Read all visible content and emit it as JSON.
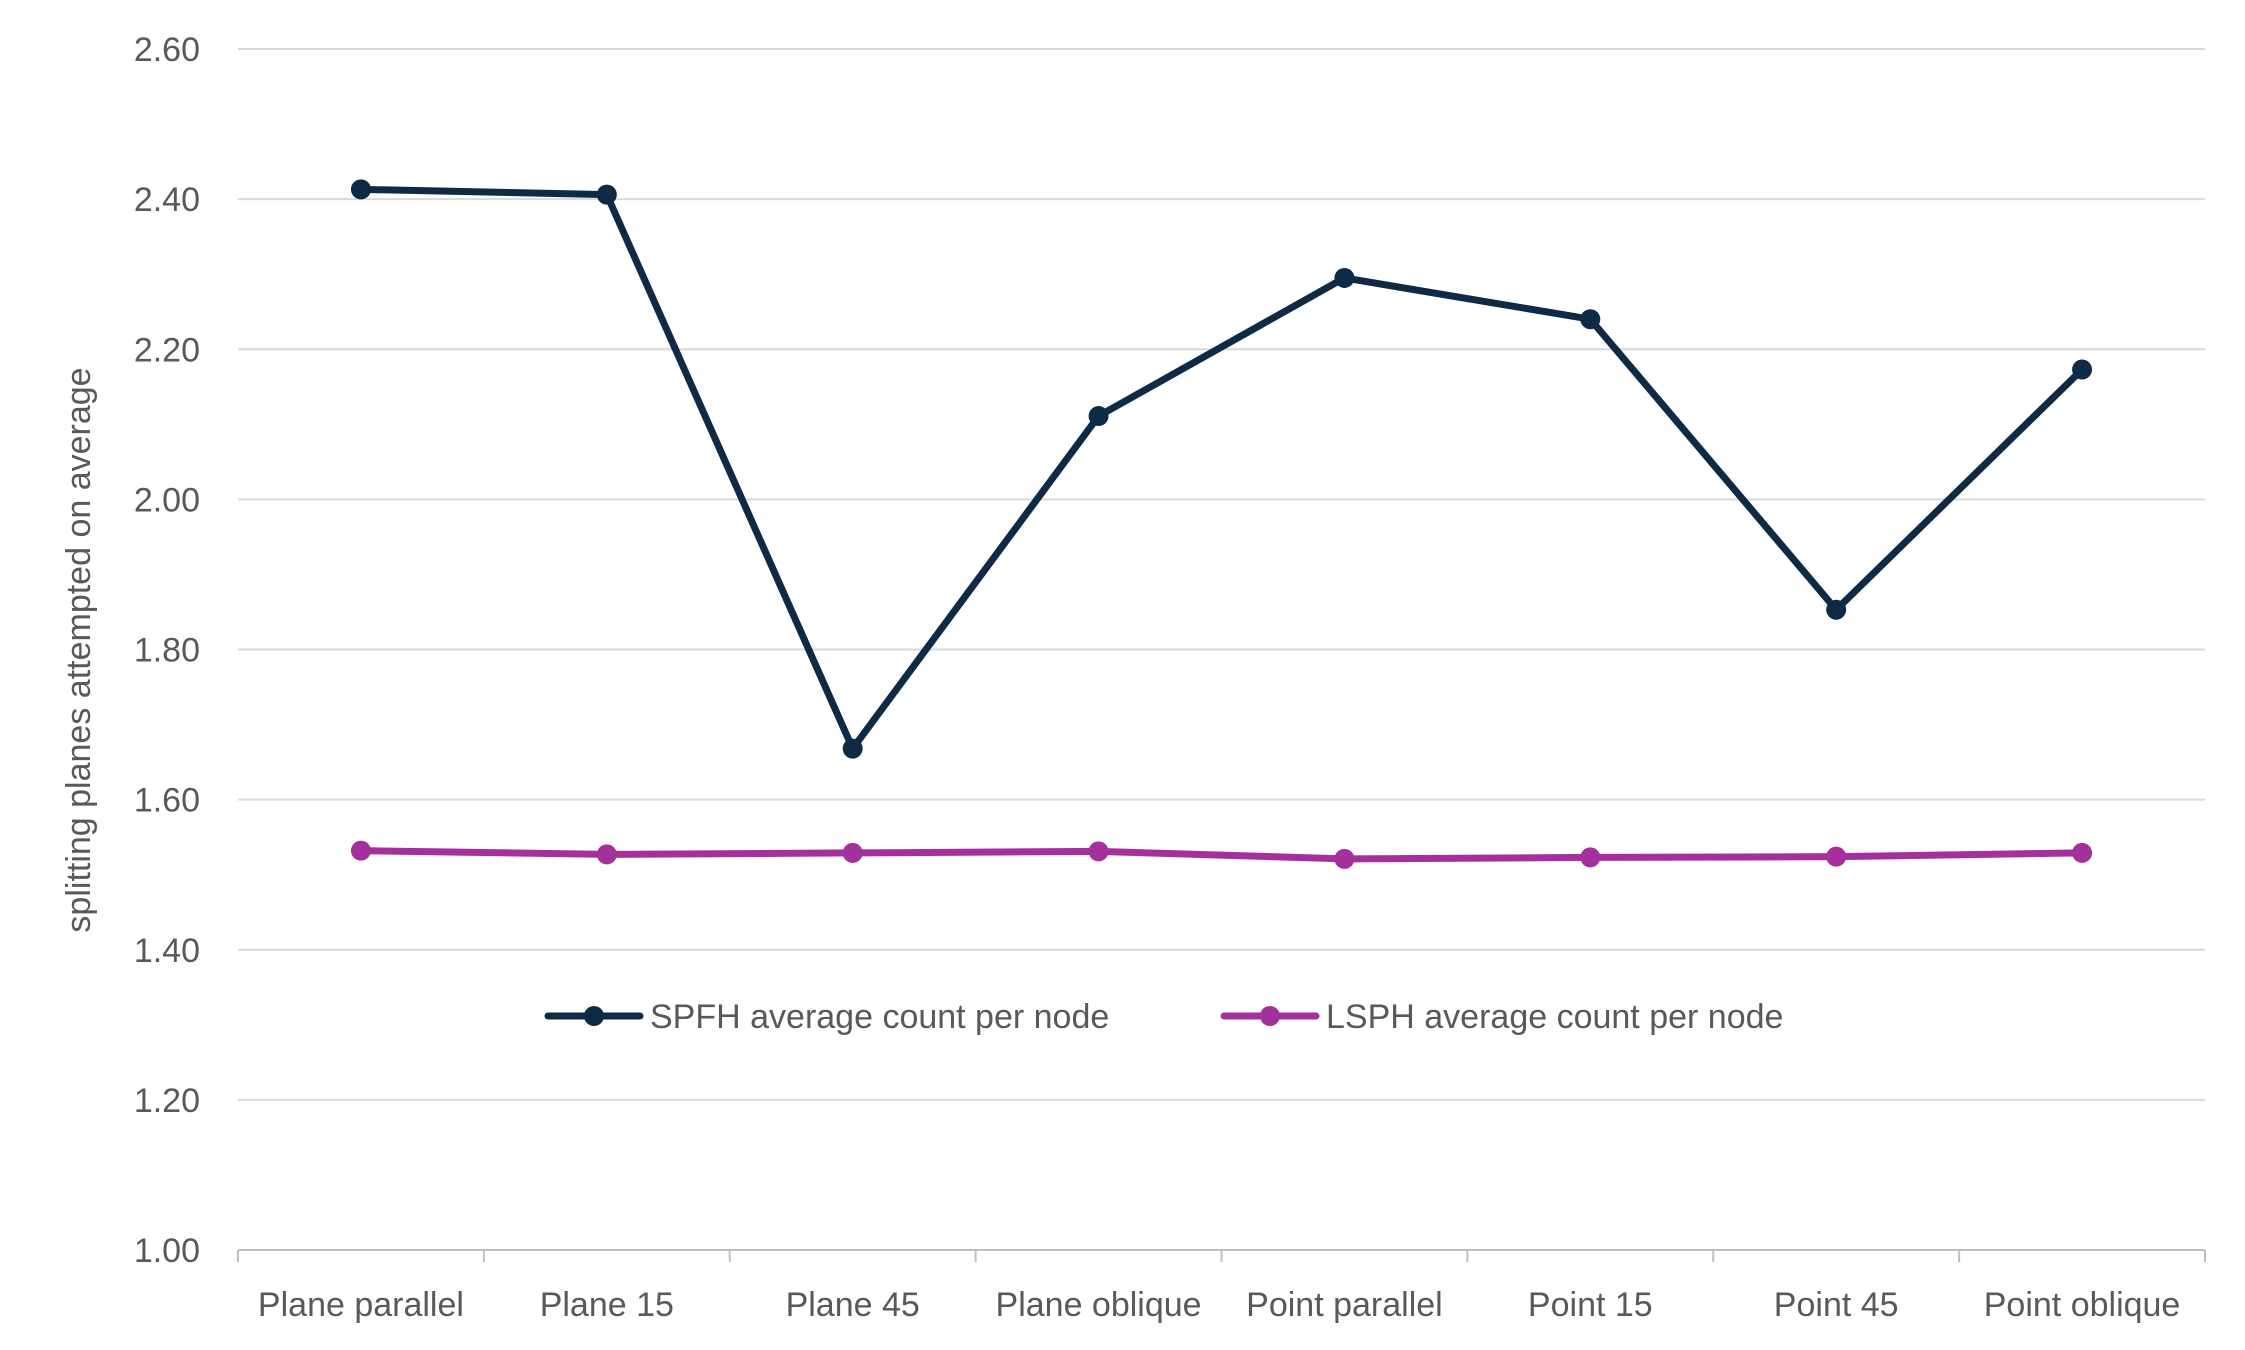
{
  "chart_data": {
    "type": "line",
    "title": "",
    "xlabel": "",
    "ylabel": "splitting planes attempted on average",
    "categories": [
      "Plane parallel",
      "Plane 15",
      "Plane 45",
      "Plane oblique",
      "Point parallel",
      "Point 15",
      "Point 45",
      "Point oblique"
    ],
    "ylim": [
      1.0,
      2.6
    ],
    "yticks": [
      "1.00",
      "1.20",
      "1.40",
      "1.60",
      "1.80",
      "2.00",
      "2.20",
      "2.40",
      "2.60"
    ],
    "grid": true,
    "legend_position": "inside-lower-center",
    "series": [
      {
        "name": "SPFH average count per node",
        "color": "#0f2a44",
        "values": [
          2.413,
          2.406,
          1.668,
          2.111,
          2.295,
          2.24,
          1.853,
          2.173
        ]
      },
      {
        "name": "LSPH average count per node",
        "color": "#a3309b",
        "values": [
          1.532,
          1.527,
          1.529,
          1.531,
          1.521,
          1.523,
          1.524,
          1.529
        ]
      }
    ]
  }
}
